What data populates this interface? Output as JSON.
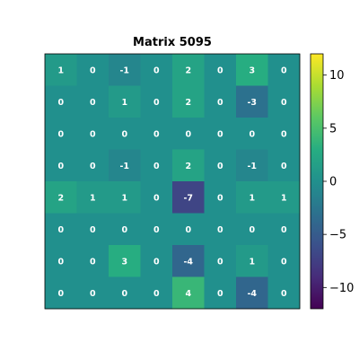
{
  "chart_data": {
    "type": "heatmap",
    "title": "Matrix 5095",
    "values": [
      [
        1,
        0,
        -1,
        0,
        2,
        0,
        3,
        0
      ],
      [
        0,
        0,
        1,
        0,
        2,
        0,
        -3,
        0
      ],
      [
        0,
        0,
        0,
        0,
        0,
        0,
        0,
        0
      ],
      [
        0,
        0,
        -1,
        0,
        2,
        0,
        -1,
        0
      ],
      [
        2,
        1,
        1,
        0,
        -7,
        0,
        1,
        1
      ],
      [
        0,
        0,
        0,
        0,
        0,
        0,
        0,
        0
      ],
      [
        0,
        0,
        3,
        0,
        -4,
        0,
        1,
        0
      ],
      [
        0,
        0,
        0,
        0,
        4,
        0,
        -4,
        0
      ]
    ],
    "colormap": "viridis",
    "vmin": -12,
    "vmax": 12,
    "colorbar_ticks": [
      10,
      5,
      0,
      -5,
      -10
    ],
    "colorbar_tick_labels": [
      "10",
      "5",
      "0",
      "−5",
      "−10"
    ],
    "show_axes_ticks": false,
    "grid": false
  }
}
